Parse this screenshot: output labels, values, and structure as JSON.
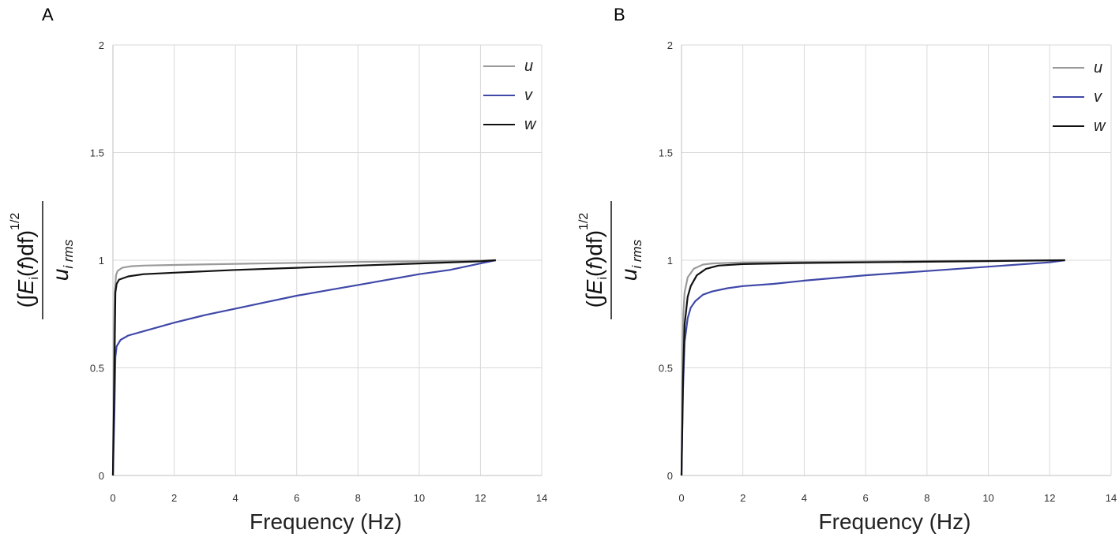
{
  "chart_data": [
    {
      "type": "line",
      "panel_label": "A",
      "xlabel": "Frequency  (Hz)",
      "ylabel": {
        "integral": "∫",
        "E": "E",
        "i": "i",
        "f": "f",
        "df": "df",
        "exponent": "1/2",
        "u": "u",
        "rms": "i rms"
      },
      "xlim": [
        0,
        14
      ],
      "ylim": [
        0,
        2
      ],
      "xticks": [
        "0",
        "2",
        "4",
        "6",
        "8",
        "10",
        "12",
        "14"
      ],
      "yticks": [
        "0",
        "0.5",
        "1",
        "1.5",
        "2"
      ],
      "grid": true,
      "legend_position": "top-right",
      "series": [
        {
          "name": "u",
          "color": "#9a9a9a",
          "points": [
            [
              0,
              0
            ],
            [
              0.03,
              0.6
            ],
            [
              0.06,
              0.85
            ],
            [
              0.1,
              0.93
            ],
            [
              0.15,
              0.95
            ],
            [
              0.3,
              0.965
            ],
            [
              0.6,
              0.972
            ],
            [
              1,
              0.975
            ],
            [
              2,
              0.978
            ],
            [
              4,
              0.983
            ],
            [
              6,
              0.988
            ],
            [
              8,
              0.992
            ],
            [
              10,
              0.995
            ],
            [
              12,
              0.998
            ],
            [
              12.5,
              1.0
            ]
          ]
        },
        {
          "name": "v",
          "color": "#3f48a8",
          "points": [
            [
              0,
              0
            ],
            [
              0.05,
              0.3
            ],
            [
              0.08,
              0.55
            ],
            [
              0.12,
              0.6
            ],
            [
              0.25,
              0.63
            ],
            [
              0.5,
              0.65
            ],
            [
              1,
              0.67
            ],
            [
              2,
              0.71
            ],
            [
              3,
              0.745
            ],
            [
              4,
              0.775
            ],
            [
              5,
              0.805
            ],
            [
              6,
              0.835
            ],
            [
              7,
              0.86
            ],
            [
              8,
              0.885
            ],
            [
              9,
              0.91
            ],
            [
              10,
              0.935
            ],
            [
              11,
              0.955
            ],
            [
              12,
              0.985
            ],
            [
              12.5,
              1.0
            ]
          ]
        },
        {
          "name": "w",
          "color": "#111111",
          "points": [
            [
              0,
              0
            ],
            [
              0.05,
              0.5
            ],
            [
              0.08,
              0.85
            ],
            [
              0.12,
              0.89
            ],
            [
              0.2,
              0.91
            ],
            [
              0.5,
              0.925
            ],
            [
              1,
              0.935
            ],
            [
              2,
              0.942
            ],
            [
              4,
              0.955
            ],
            [
              6,
              0.965
            ],
            [
              8,
              0.975
            ],
            [
              10,
              0.985
            ],
            [
              12,
              0.995
            ],
            [
              12.5,
              1.0
            ]
          ]
        }
      ]
    },
    {
      "type": "line",
      "panel_label": "B",
      "xlabel": "Frequency  (Hz)",
      "ylabel": {
        "integral": "∫",
        "E": "E",
        "i": "i",
        "f": "f",
        "df": "df",
        "exponent": "1/2",
        "u": "u",
        "rms": "i rms"
      },
      "xlim": [
        0,
        14
      ],
      "ylim": [
        0,
        2
      ],
      "xticks": [
        "0",
        "2",
        "4",
        "6",
        "8",
        "10",
        "12",
        "14"
      ],
      "yticks": [
        "0",
        "0.5",
        "1",
        "1.5",
        "2"
      ],
      "grid": true,
      "legend_position": "top-right",
      "series": [
        {
          "name": "u",
          "color": "#9a9a9a",
          "points": [
            [
              0,
              0
            ],
            [
              0.03,
              0.5
            ],
            [
              0.06,
              0.75
            ],
            [
              0.1,
              0.85
            ],
            [
              0.2,
              0.92
            ],
            [
              0.4,
              0.96
            ],
            [
              0.7,
              0.98
            ],
            [
              1,
              0.985
            ],
            [
              2,
              0.99
            ],
            [
              4,
              0.992
            ],
            [
              8,
              0.996
            ],
            [
              12.5,
              1.0
            ]
          ]
        },
        {
          "name": "v",
          "color": "#3f48a8",
          "points": [
            [
              0,
              0
            ],
            [
              0.05,
              0.4
            ],
            [
              0.1,
              0.62
            ],
            [
              0.2,
              0.73
            ],
            [
              0.3,
              0.78
            ],
            [
              0.45,
              0.81
            ],
            [
              0.7,
              0.84
            ],
            [
              1,
              0.855
            ],
            [
              1.5,
              0.87
            ],
            [
              2,
              0.88
            ],
            [
              3,
              0.89
            ],
            [
              4,
              0.905
            ],
            [
              6,
              0.93
            ],
            [
              8,
              0.95
            ],
            [
              10,
              0.97
            ],
            [
              12,
              0.99
            ],
            [
              12.5,
              1.0
            ]
          ]
        },
        {
          "name": "w",
          "color": "#111111",
          "points": [
            [
              0,
              0
            ],
            [
              0.05,
              0.45
            ],
            [
              0.1,
              0.7
            ],
            [
              0.2,
              0.83
            ],
            [
              0.3,
              0.88
            ],
            [
              0.5,
              0.93
            ],
            [
              0.8,
              0.96
            ],
            [
              1.2,
              0.975
            ],
            [
              2,
              0.982
            ],
            [
              4,
              0.987
            ],
            [
              6,
              0.99
            ],
            [
              8,
              0.993
            ],
            [
              10,
              0.996
            ],
            [
              12.5,
              1.0
            ]
          ]
        }
      ]
    }
  ]
}
